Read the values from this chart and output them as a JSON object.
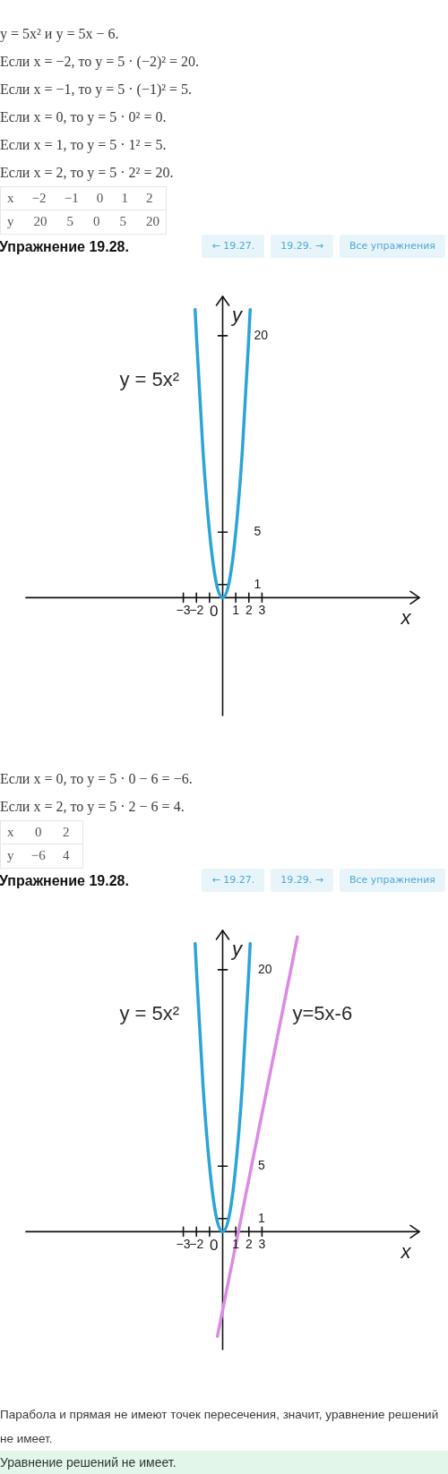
{
  "chart_data": [
    {
      "type": "other",
      "annotations": [
        "y = 5x² и y = 5x − 6.",
        "Если x = −2, то y = 5 · (−2)² = 20.",
        "Если x = −1, то y = 5 · (−1)² = 5.",
        "Если x = 0, то y = 5 · 0² = 0.",
        "Если x = 1, то y = 5 · 1² = 5.",
        "Если x = 2, то y = 5 · 2² = 20.",
        "x −2 −1 0 1 2",
        "y 20 5 0 5 20"
      ]
    },
    {
      "type": "line",
      "title": "Упражнение 19.28.",
      "annotations": [
        "← 19.27.",
        "19.29. →",
        "Все упражнения",
        {
          "text": "0",
          "x": 0,
          "y": 0
        }
      ],
      "xlabel": "x",
      "ylabel": "y",
      "xlim": [
        -15,
        15
      ],
      "ylim": [
        -9,
        23
      ],
      "xticks": [
        {
          "value": -3,
          "label": "−3"
        },
        {
          "value": -2,
          "label": "−2"
        },
        {
          "value": -1,
          "label": null
        },
        1,
        2,
        3
      ],
      "yticks": [
        1,
        5,
        20
      ],
      "series": [
        {
          "name": "y = 5x²",
          "color": "#2ba4d6",
          "x": [
            -2.1,
            -2,
            -1.5,
            -1,
            -0.5,
            0,
            0.5,
            1,
            1.5,
            2,
            2.1
          ],
          "values": [
            22,
            20,
            11.2,
            5,
            1.2,
            0,
            1.2,
            5,
            11.2,
            20,
            22
          ]
        }
      ]
    },
    {
      "type": "other",
      "annotations": [
        "Если x = 0, то y = 5 · 0 − 6 = −6.",
        "Если x = 2, то y = 5 · 2 − 6 = 4.",
        "x 0 2",
        "y −6 4"
      ]
    },
    {
      "type": "line",
      "title": "Упражнение 19.28.",
      "annotations": [
        "← 19.27.",
        "19.29. →",
        "Все упражнения",
        {
          "text": "0",
          "x": 0,
          "y": 0
        }
      ],
      "xlabel": "x",
      "ylabel": "y",
      "xlim": [
        -15,
        15
      ],
      "ylim": [
        -9,
        23
      ],
      "xticks": [
        {
          "value": -3,
          "label": "−3"
        },
        {
          "value": -2,
          "label": "−2"
        },
        {
          "value": -1,
          "label": null
        },
        1,
        2,
        3
      ],
      "yticks": [
        1,
        5,
        20
      ],
      "series": [
        {
          "name": "y = 5x²",
          "color": "#2ba4d6",
          "x": [
            -2.1,
            -2,
            -1.5,
            -1,
            -0.5,
            0,
            0.5,
            1,
            1.5,
            2,
            2.1
          ],
          "values": [
            22,
            20,
            11.2,
            5,
            1.2,
            0,
            1.2,
            5,
            11.2,
            20,
            22
          ]
        },
        {
          "name": "y=5x-6",
          "color": "#d98be3",
          "x": [
            -0.4,
            5.7
          ],
          "values": [
            -8,
            22.5
          ]
        }
      ]
    },
    {
      "type": "other",
      "annotations": [
        "Парабола и прямая не имеют точек пересечения, значит, уравнение решений не имеет.",
        "Уравнение решений не имеет."
      ]
    }
  ]
}
